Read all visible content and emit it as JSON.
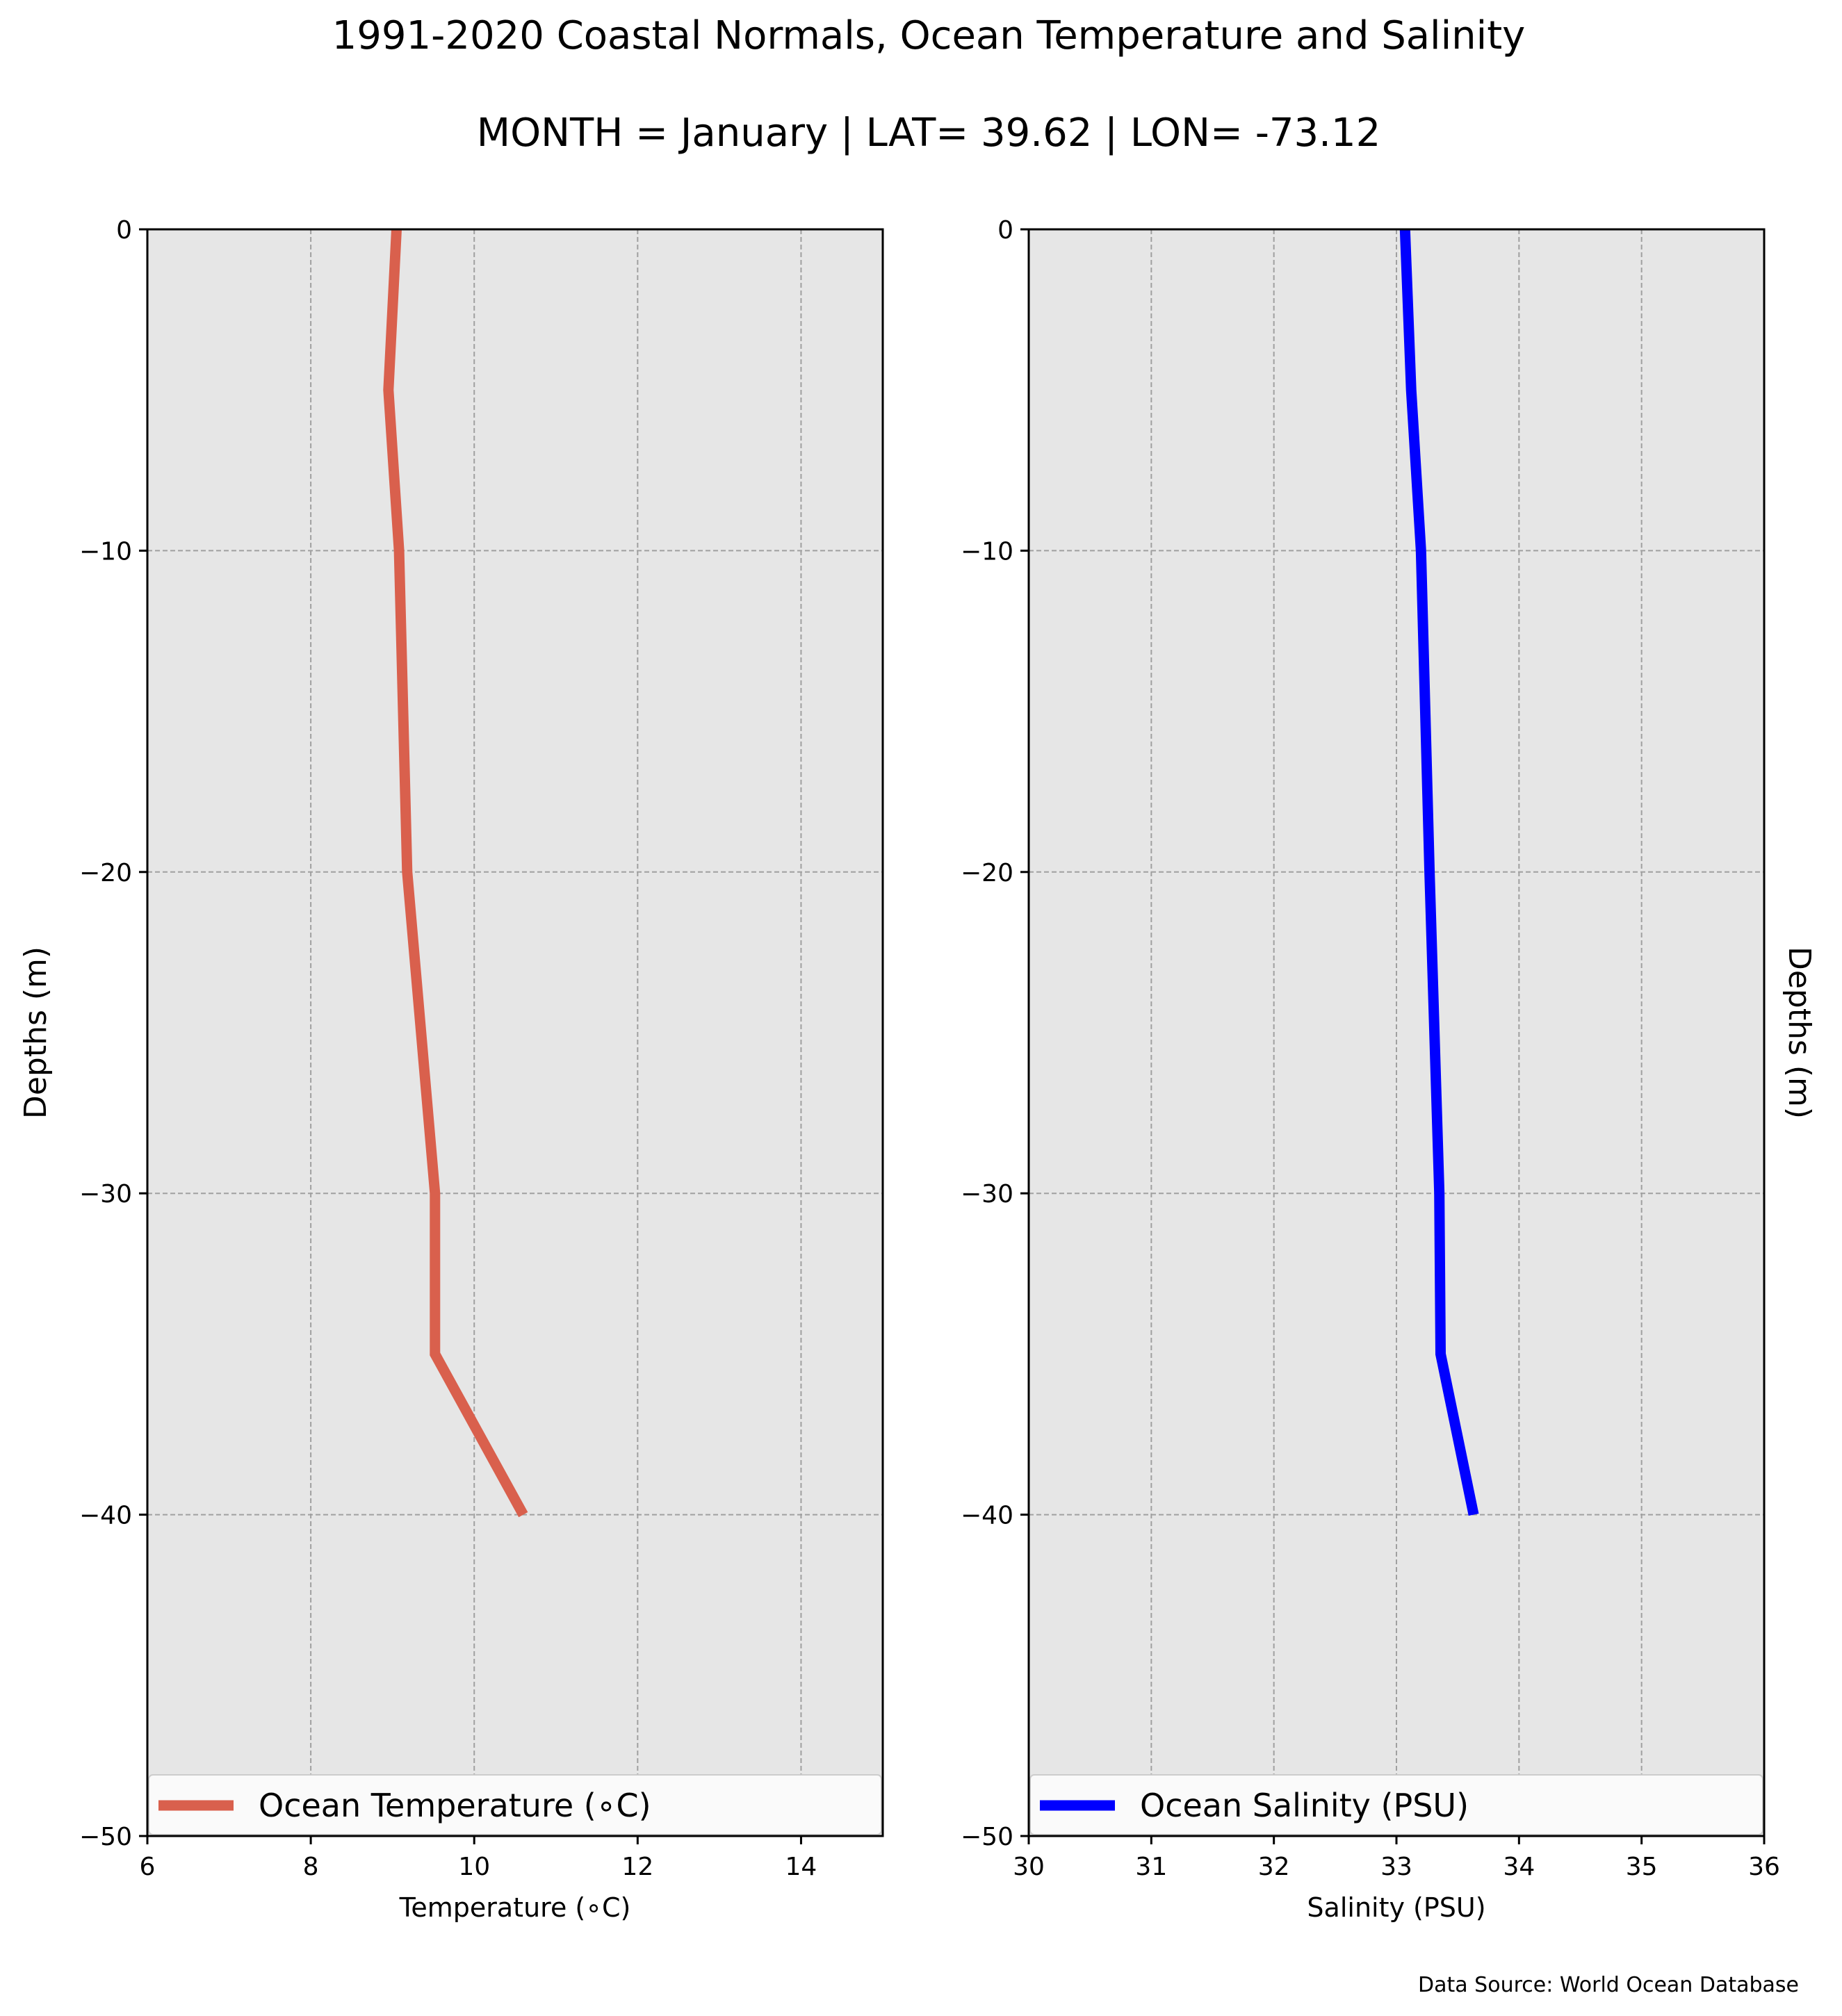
{
  "figure": {
    "title": "1991-2020 Coastal Normals, Ocean Temperature and Salinity",
    "subtitle": "MONTH = January | LAT= 39.62 | LON= -73.12",
    "source_note": "Data Source: World Ocean Database"
  },
  "chart_data": [
    {
      "type": "line",
      "xlabel": "Temperature (∘C)",
      "ylabel": "Depths (m)",
      "ylabel_side": "left",
      "xlim": [
        6,
        15
      ],
      "ylim": [
        -50,
        0
      ],
      "xticks": [
        6,
        8,
        10,
        12,
        14
      ],
      "xtick_labels": [
        "6",
        "8",
        "10",
        "12",
        "14"
      ],
      "yticks": [
        0,
        -10,
        -20,
        -30,
        -40,
        -50
      ],
      "ytick_labels": [
        "0",
        "−10",
        "−20",
        "−30",
        "−40",
        "−50"
      ],
      "grid": true,
      "legend": "bottom",
      "series": [
        {
          "name": "Ocean Temperature (∘C)",
          "color": "#d9604d",
          "x": [
            9.05,
            8.95,
            9.08,
            9.18,
            9.35,
            9.52,
            9.52,
            10.6
          ],
          "y": [
            0,
            -5,
            -10,
            -20,
            -25,
            -30,
            -35,
            -40
          ]
        }
      ]
    },
    {
      "type": "line",
      "xlabel": "Salinity (PSU)",
      "ylabel": "Depths (m)",
      "ylabel_side": "right",
      "xlim": [
        30,
        36
      ],
      "ylim": [
        -50,
        0
      ],
      "xticks": [
        30,
        31,
        32,
        33,
        34,
        35,
        36
      ],
      "xtick_labels": [
        "30",
        "31",
        "32",
        "33",
        "34",
        "35",
        "36"
      ],
      "yticks": [
        0,
        -10,
        -20,
        -30,
        -40,
        -50
      ],
      "ytick_labels": [
        "0",
        "−10",
        "−20",
        "−30",
        "−40",
        "−50"
      ],
      "grid": true,
      "legend": "bottom",
      "series": [
        {
          "name": "Ocean Salinity (PSU)",
          "color": "#0000ff",
          "x": [
            33.07,
            33.12,
            33.2,
            33.27,
            33.35,
            33.36,
            33.63
          ],
          "y": [
            0,
            -5,
            -10,
            -20,
            -30,
            -35,
            -40
          ]
        }
      ]
    }
  ]
}
